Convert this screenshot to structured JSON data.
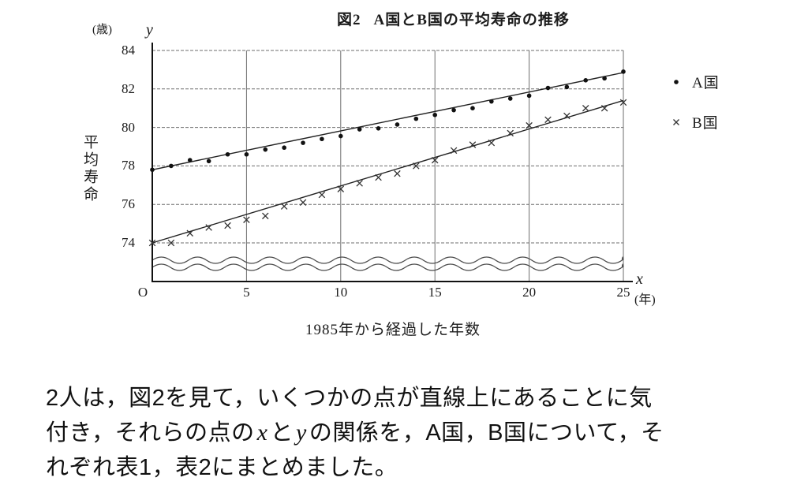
{
  "figure": {
    "label": "図2",
    "title": "A国とB国の平均寿命の推移",
    "y_axis_unit": "(歳)",
    "y_axis_var": "y",
    "y_axis_label": "平均寿命",
    "x_axis_var": "x",
    "x_axis_unit": "(年)",
    "x_axis_caption": "1985年から経過した年数",
    "legend": [
      {
        "marker": "dot",
        "label": "A国"
      },
      {
        "marker": "x",
        "label": "B国"
      }
    ]
  },
  "chart_data": {
    "type": "scatter",
    "title": "図2　A国とB国の平均寿命の推移",
    "xlabel": "1985年から経過した年数",
    "ylabel": "平均寿命",
    "x_unit": "年",
    "y_unit": "歳",
    "xlim": [
      0,
      25
    ],
    "ylim_displayed": [
      74,
      84
    ],
    "axis_break_above_origin": true,
    "grid": true,
    "legend_position": "right",
    "xticks": [
      0,
      5,
      10,
      15,
      20,
      25
    ],
    "xtick_labels": [
      "O",
      "5",
      "10",
      "15",
      "20",
      "25"
    ],
    "yticks": [
      84,
      82,
      80,
      78,
      76,
      74
    ],
    "x": [
      0,
      1,
      2,
      3,
      4,
      5,
      6,
      7,
      8,
      9,
      10,
      11,
      12,
      13,
      14,
      15,
      16,
      17,
      18,
      19,
      20,
      21,
      22,
      23,
      24,
      25
    ],
    "series": [
      {
        "name": "A国",
        "marker": "dot",
        "values": [
          77.8,
          78.0,
          78.3,
          78.25,
          78.6,
          78.6,
          78.85,
          78.95,
          79.2,
          79.4,
          79.55,
          79.9,
          79.95,
          80.15,
          80.45,
          80.65,
          80.9,
          81.0,
          81.35,
          81.5,
          81.65,
          82.05,
          82.1,
          82.45,
          82.55,
          82.9
        ],
        "trend_line": {
          "from": [
            0,
            77.8
          ],
          "to": [
            25,
            82.85
          ]
        }
      },
      {
        "name": "B国",
        "marker": "x",
        "values": [
          74.0,
          74.0,
          74.5,
          74.8,
          74.9,
          75.2,
          75.4,
          75.9,
          76.1,
          76.5,
          76.8,
          77.1,
          77.4,
          77.6,
          78.0,
          78.3,
          78.8,
          79.1,
          79.2,
          79.7,
          80.1,
          80.4,
          80.6,
          81.0,
          81.0,
          81.3
        ],
        "trend_line": {
          "from": [
            0,
            74.0
          ],
          "to": [
            25,
            81.4
          ]
        }
      }
    ]
  },
  "colors": {
    "ink": "#1c1c1c",
    "gridline": "#6e6e6e",
    "axis": "#111111"
  },
  "paragraph": {
    "line1": "2人は，図2を見て，いくつかの点が直線上にあることに気",
    "line2_pre": "付き，それらの点の",
    "line2_var_x": "x",
    "line2_mid": "と",
    "line2_var_y": "y",
    "line2_post": "の関係を，A国，B国について，そ",
    "line3": "れぞれ表1，表2にまとめました。"
  }
}
